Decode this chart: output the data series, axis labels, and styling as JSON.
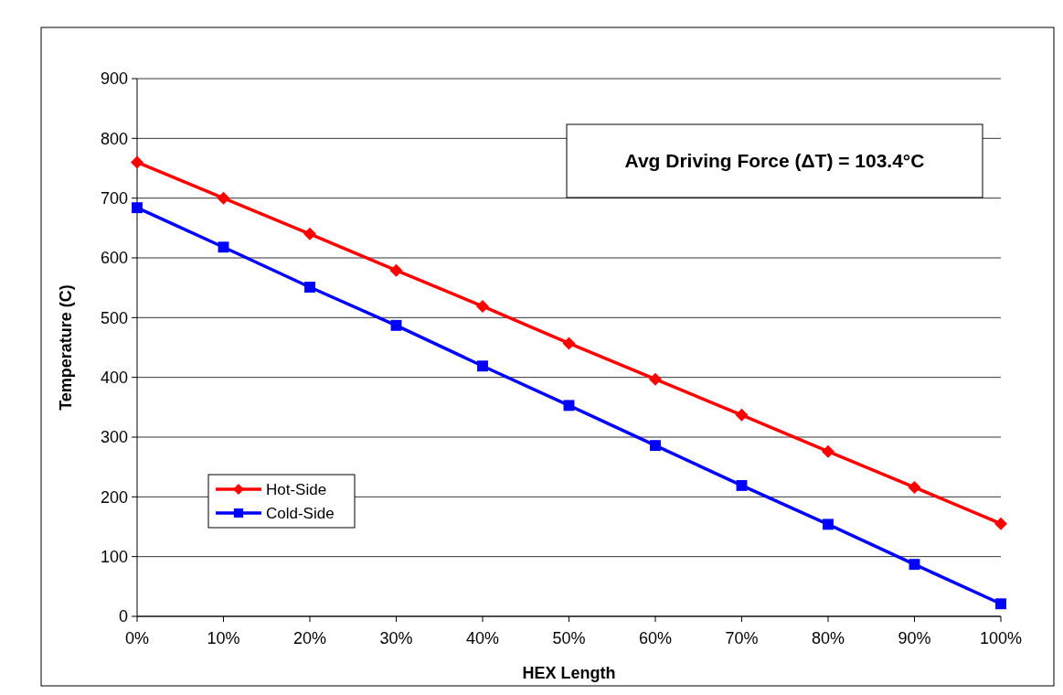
{
  "chart_data": {
    "type": "line",
    "xlabel": "HEX Length",
    "ylabel": "Temperature (C)",
    "x": [
      0,
      10,
      20,
      30,
      40,
      50,
      60,
      70,
      80,
      90,
      100
    ],
    "series": [
      {
        "name": "Hot-Side",
        "color": "#ff0000",
        "marker": "diamond",
        "values": [
          760,
          700,
          640,
          579,
          519,
          457,
          397,
          337,
          276,
          216,
          155
        ]
      },
      {
        "name": "Cold-Side",
        "color": "#0000ff",
        "marker": "square",
        "values": [
          684,
          618,
          551,
          487,
          419,
          353,
          286,
          219,
          154,
          87,
          21
        ]
      }
    ],
    "xlim": [
      0,
      100
    ],
    "xticks": [
      {
        "value": 0,
        "label": "0%"
      },
      {
        "value": 10,
        "label": "10%"
      },
      {
        "value": 20,
        "label": "20%"
      },
      {
        "value": 30,
        "label": "30%"
      },
      {
        "value": 40,
        "label": "40%"
      },
      {
        "value": 50,
        "label": "50%"
      },
      {
        "value": 60,
        "label": "60%"
      },
      {
        "value": 70,
        "label": "70%"
      },
      {
        "value": 80,
        "label": "80%"
      },
      {
        "value": 90,
        "label": "90%"
      },
      {
        "value": 100,
        "label": "100%"
      }
    ],
    "ylim": [
      0,
      900
    ],
    "yticks": [
      0,
      100,
      200,
      300,
      400,
      500,
      600,
      700,
      800,
      900
    ],
    "grid": "y",
    "legend": "bottom left",
    "line_style": "solid",
    "annotations": [
      "Avg Driving Force (ΔT) = 103.4°C"
    ]
  }
}
